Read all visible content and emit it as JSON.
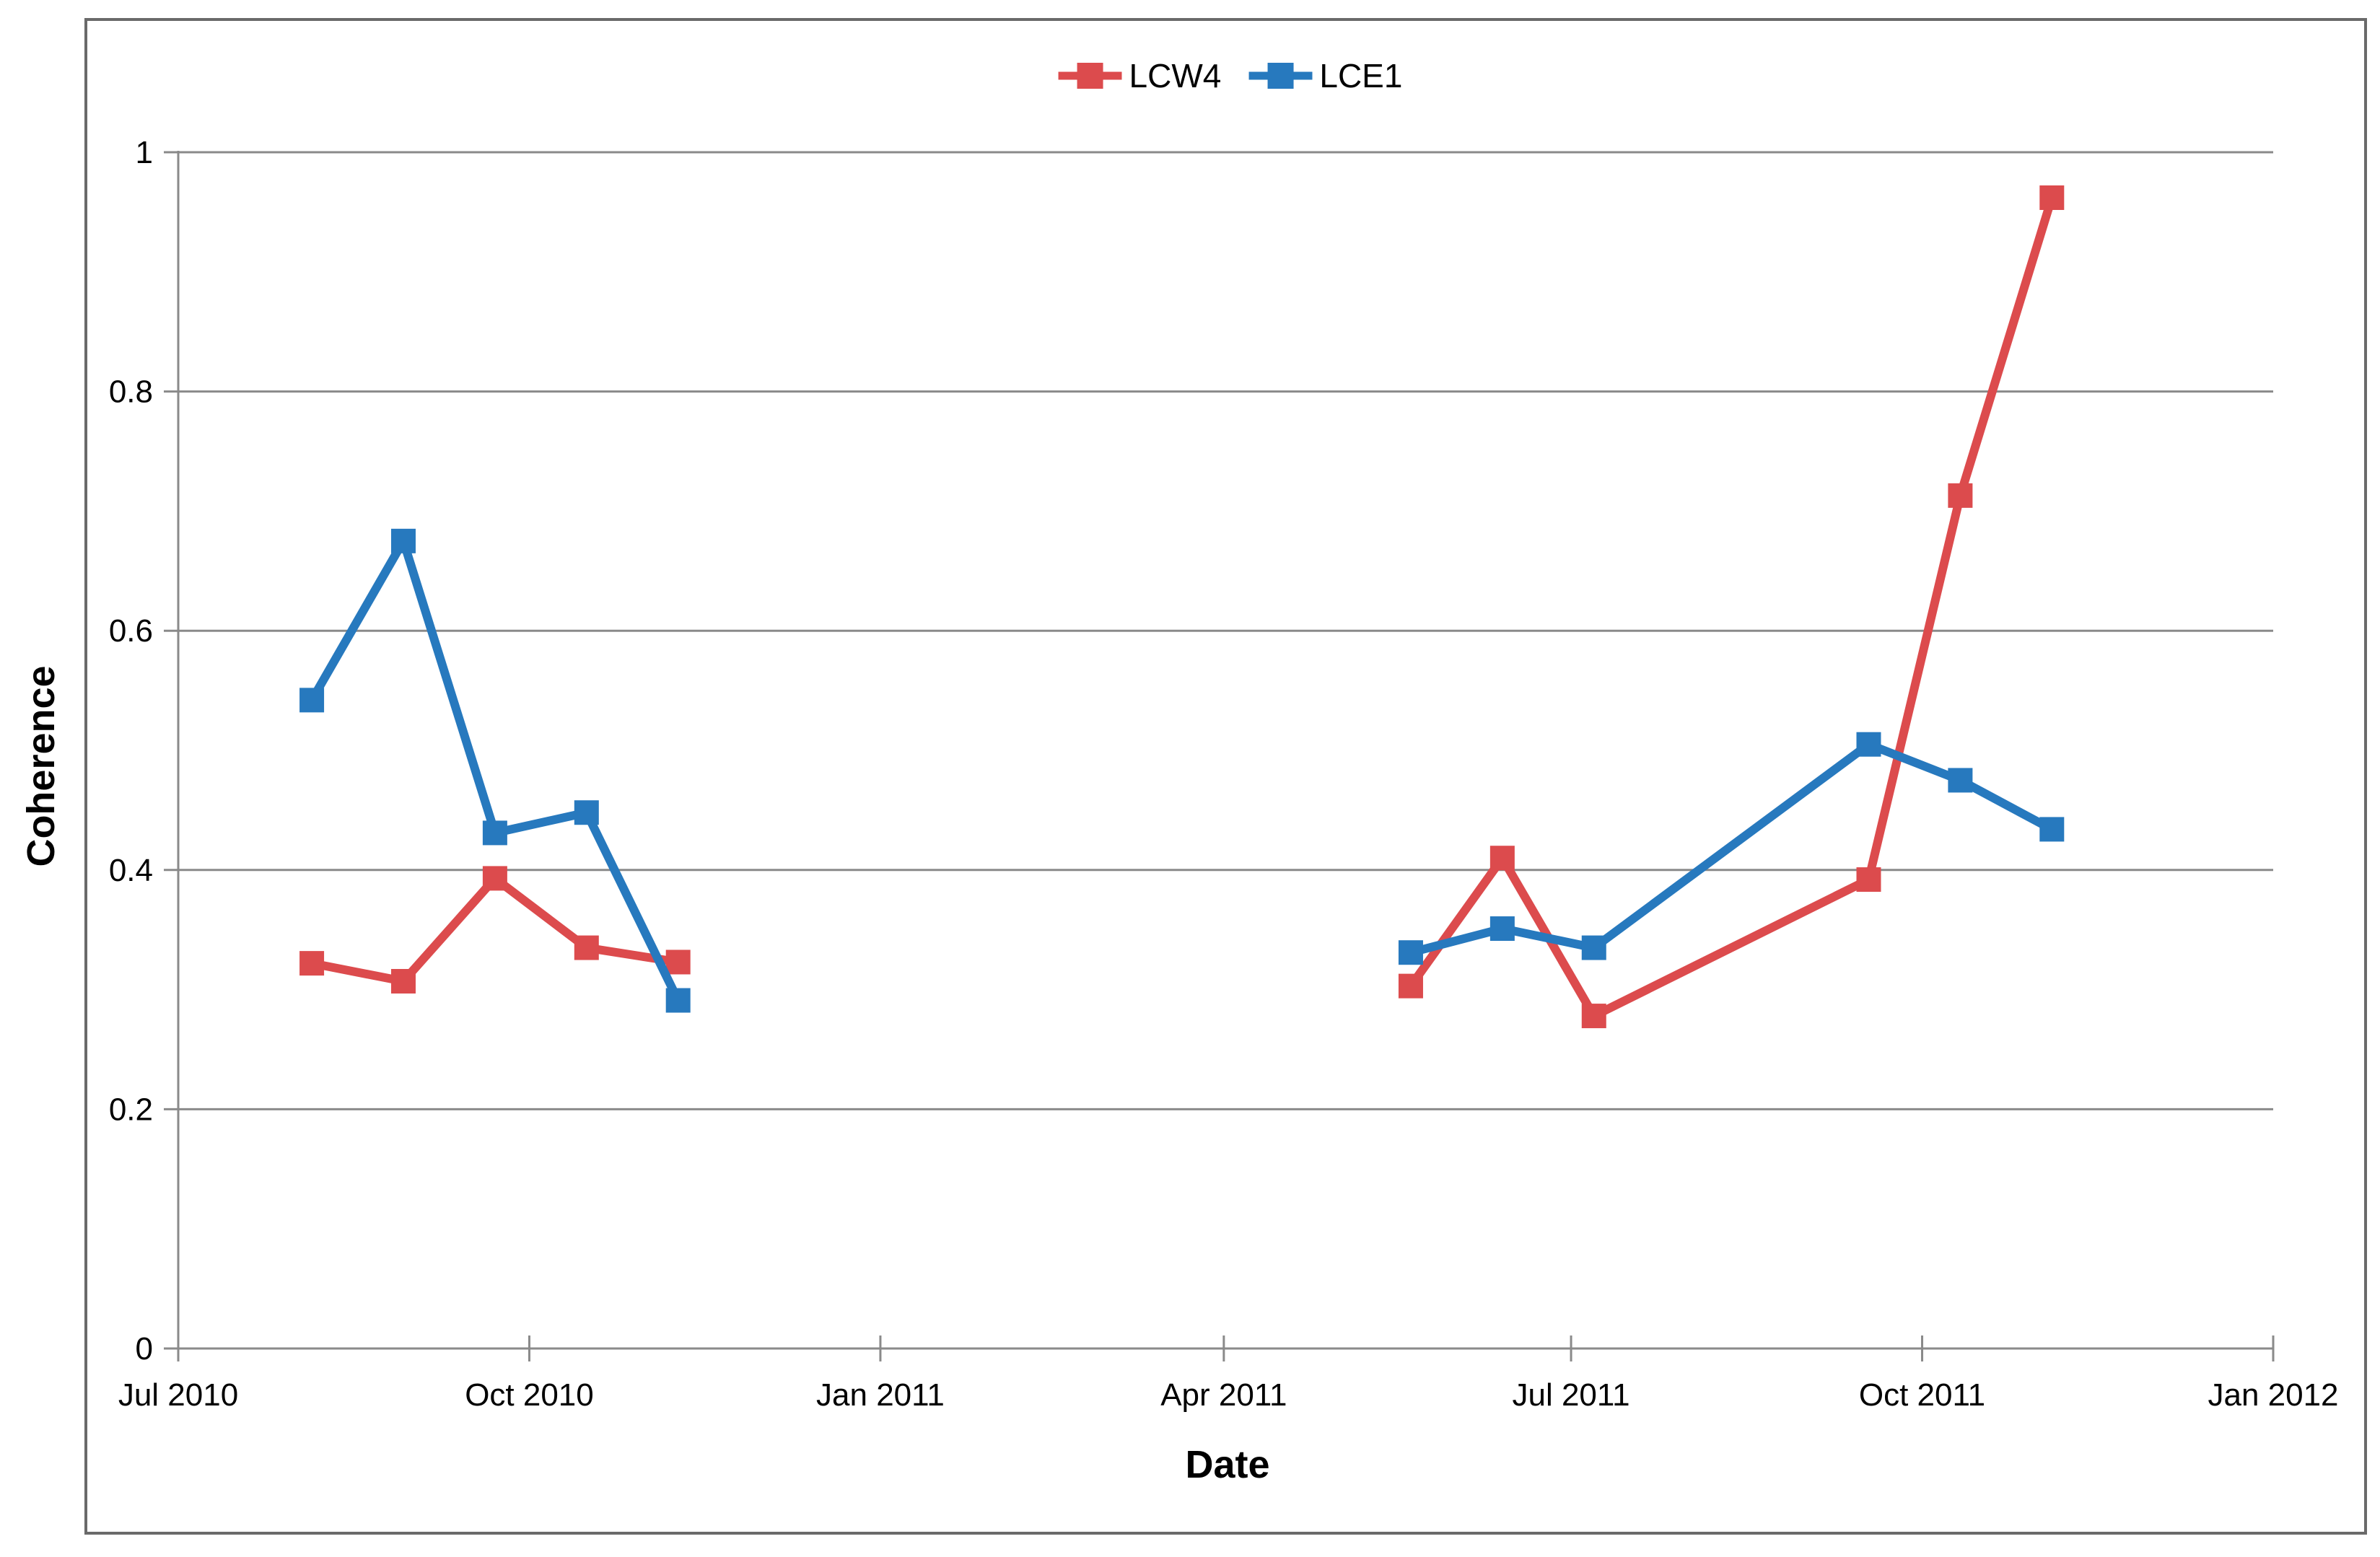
{
  "style": {
    "background": "#FFFFFF",
    "border_color": "#6A6A6A",
    "grid_color": "#8A8A8A",
    "axis_color": "#8A8A8A",
    "text_color": "#000000"
  },
  "chart_data": {
    "type": "line",
    "xlabel": "Date",
    "ylabel": "Coherence",
    "legend_position": "top-center",
    "grid": "horizontal",
    "marker": "square",
    "x_axis": {
      "start": "2010-07-01",
      "end": "2012-01-01",
      "ticks": [
        {
          "label": "Jul 2010",
          "date": "2010-07-01"
        },
        {
          "label": "Oct 2010",
          "date": "2010-10-01"
        },
        {
          "label": "Jan 2011",
          "date": "2011-01-01"
        },
        {
          "label": "Apr 2011",
          "date": "2011-04-01"
        },
        {
          "label": "Jul 2011",
          "date": "2011-07-01"
        },
        {
          "label": "Oct 2011",
          "date": "2011-10-01"
        },
        {
          "label": "Jan 2012",
          "date": "2012-01-01"
        }
      ]
    },
    "y_axis": {
      "min": 0,
      "max": 1,
      "ticks": [
        {
          "label": "0",
          "value": 0
        },
        {
          "label": "0.2",
          "value": 0.2
        },
        {
          "label": "0.4",
          "value": 0.4
        },
        {
          "label": "0.6",
          "value": 0.6
        },
        {
          "label": "0.8",
          "value": 0.8
        },
        {
          "label": "1",
          "value": 1
        }
      ]
    },
    "series": [
      {
        "name": "LCW4",
        "color": "#DC4B4D",
        "marker": "square",
        "segments": [
          [
            {
              "date": "2010-08-05",
              "value": 0.322
            },
            {
              "date": "2010-08-29",
              "value": 0.307
            },
            {
              "date": "2010-09-22",
              "value": 0.393
            },
            {
              "date": "2010-10-16",
              "value": 0.335
            },
            {
              "date": "2010-11-09",
              "value": 0.323
            }
          ],
          [
            {
              "date": "2011-05-20",
              "value": 0.303
            },
            {
              "date": "2011-06-13",
              "value": 0.41
            },
            {
              "date": "2011-07-07",
              "value": 0.278
            },
            {
              "date": "2011-09-17",
              "value": 0.392
            },
            {
              "date": "2011-10-11",
              "value": 0.713
            },
            {
              "date": "2011-11-04",
              "value": 0.962
            }
          ]
        ]
      },
      {
        "name": "LCE1",
        "color": "#2779BE",
        "marker": "square",
        "segments": [
          [
            {
              "date": "2010-08-05",
              "value": 0.542
            },
            {
              "date": "2010-08-29",
              "value": 0.675
            },
            {
              "date": "2010-09-22",
              "value": 0.431
            },
            {
              "date": "2010-10-16",
              "value": 0.448
            },
            {
              "date": "2010-11-09",
              "value": 0.291
            }
          ],
          [
            {
              "date": "2011-05-20",
              "value": 0.331
            },
            {
              "date": "2011-06-13",
              "value": 0.351
            },
            {
              "date": "2011-07-07",
              "value": 0.335
            },
            {
              "date": "2011-09-17",
              "value": 0.505
            },
            {
              "date": "2011-10-11",
              "value": 0.475
            },
            {
              "date": "2011-11-04",
              "value": 0.434
            }
          ]
        ]
      }
    ]
  }
}
